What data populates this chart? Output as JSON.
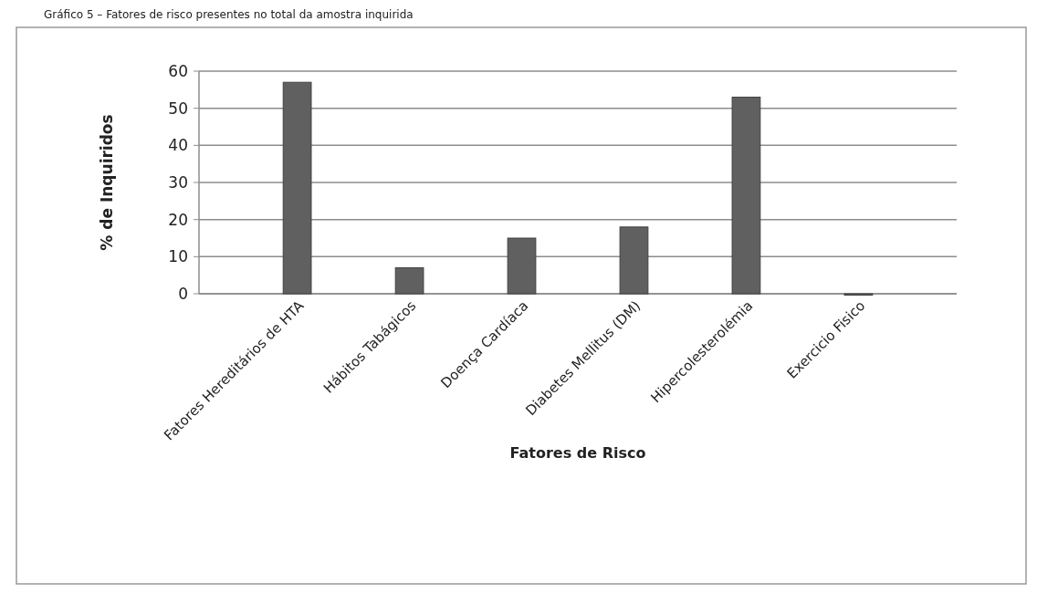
{
  "chart_data": {
    "type": "bar",
    "title": "Gráfico 5 – Fatores de risco presentes no total da amostra inquirida",
    "xlabel": "Fatores de Risco",
    "ylabel": "% de Inquiridos",
    "categories": [
      "Fatores Hereditários de HTA",
      "Hábitos Tabágicos",
      "Doença Cardíaca",
      "Diabetes Mellitus (DM)",
      "Hipercolesterolémia",
      "Exercicio Fisico"
    ],
    "values": [
      57,
      7,
      15,
      18,
      53,
      0
    ],
    "color": "#606060",
    "ylim": [
      0,
      60
    ],
    "yticks": [
      0,
      10,
      20,
      30,
      40,
      50,
      60
    ],
    "grid": "y"
  }
}
